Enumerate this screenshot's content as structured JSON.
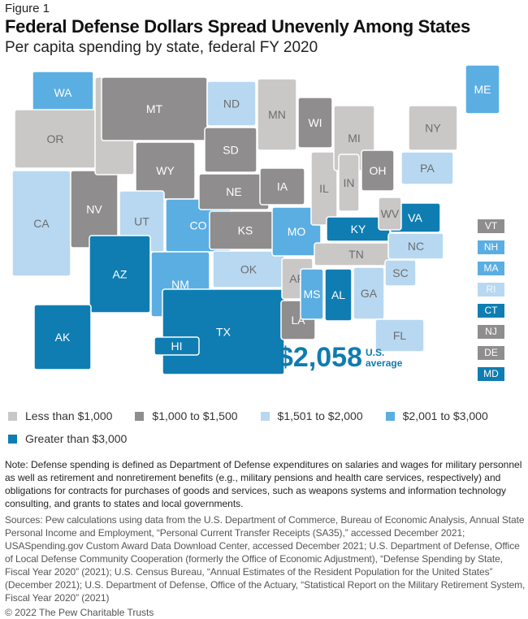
{
  "figure_label": "Figure 1",
  "title": "Federal Defense Dollars Spread Unevenly Among States",
  "subtitle": "Per capita spending by state, federal FY 2020",
  "average": {
    "value": "$2,058",
    "label_line1": "U.S.",
    "label_line2": "average"
  },
  "colors": {
    "c1": "#cac7c7",
    "c2": "#8f8d8d",
    "c3": "#b8d8f1",
    "c4": "#5baee2",
    "c5": "#0f7db2"
  },
  "legend": [
    {
      "key": "c1",
      "label": "Less than $1,000"
    },
    {
      "key": "c2",
      "label": "$1,000 to $1,500"
    },
    {
      "key": "c3",
      "label": "$1,501 to $2,000"
    },
    {
      "key": "c4",
      "label": "$2,001 to $3,000"
    },
    {
      "key": "c5",
      "label": "Greater than $3,000"
    }
  ],
  "states": {
    "WA": "c4",
    "OR": "c1",
    "CA": "c3",
    "NV": "c2",
    "ID": "c1",
    "MT": "c2",
    "WY": "c2",
    "UT": "c3",
    "CO": "c4",
    "AZ": "c5",
    "NM": "c4",
    "ND": "c3",
    "SD": "c2",
    "NE": "c2",
    "KS": "c2",
    "OK": "c3",
    "TX": "c5",
    "MN": "c1",
    "IA": "c2",
    "MO": "c4",
    "AR": "c1",
    "LA": "c2",
    "WI": "c2",
    "IL": "c1",
    "MI": "c1",
    "IN": "c1",
    "OH": "c2",
    "KY": "c5",
    "TN": "c1",
    "MS": "c4",
    "AL": "c5",
    "GA": "c3",
    "FL": "c3",
    "SC": "c3",
    "NC": "c3",
    "VA": "c5",
    "WV": "c1",
    "PA": "c3",
    "NY": "c1",
    "ME": "c4",
    "AK": "c5",
    "HI": "c5"
  },
  "small_states": [
    {
      "abbr": "VT",
      "cat": "c2"
    },
    {
      "abbr": "NH",
      "cat": "c4"
    },
    {
      "abbr": "MA",
      "cat": "c4"
    },
    {
      "abbr": "RI",
      "cat": "c3"
    },
    {
      "abbr": "CT",
      "cat": "c5"
    },
    {
      "abbr": "NJ",
      "cat": "c2"
    },
    {
      "abbr": "DE",
      "cat": "c2"
    },
    {
      "abbr": "MD",
      "cat": "c5"
    }
  ],
  "note": "Note: Defense spending is defined as Department of Defense expenditures on salaries and wages for military personnel as well as retirement and nonretirement benefits (e.g., military pensions and health care services, respectively) and obligations for contracts for purchases of goods and services, such as weapons systems and information technology consulting, and grants to states and local governments.",
  "sources": "Sources: Pew calculations using data from the U.S. Department of Commerce, Bureau of Economic Analysis, Annual State Personal Income and Employment, “Personal Current Transfer Receipts (SA35),” accessed December 2021; USASpending.gov Custom Award Data Download Center, accessed December 2021; U.S. Department of Defense, Office of Local Defense Community Cooperation (formerly the Office of Economic Adjustment), “Defense Spending by State, Fiscal Year 2020” (2021); U.S. Census Bureau, “Annual Estimates of the Resident Population for the United States” (December 2021); U.S. Department of Defense, Office of the Actuary, “Statistical Report on the Military Retirement System, Fiscal Year 2020” (2021)",
  "copyright": "© 2022 The Pew Charitable Trusts"
}
